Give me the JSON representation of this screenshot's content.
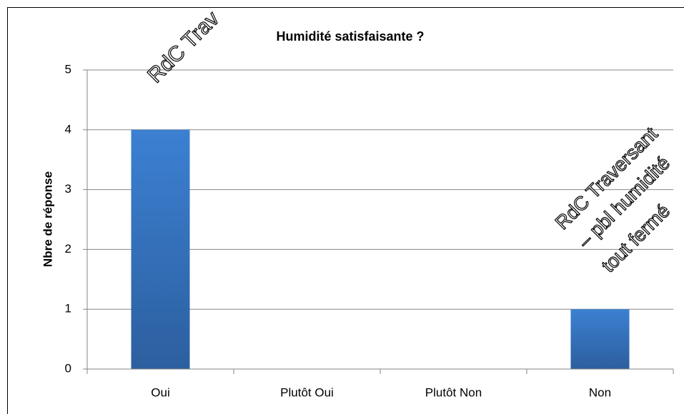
{
  "chart_data": {
    "type": "bar",
    "title": "Humidité satisfaisante ?",
    "y_label": "Nbre de réponse",
    "categories": [
      "Oui",
      "Plutôt Oui",
      "Plutôt Non",
      "Non"
    ],
    "values": [
      4,
      0,
      0,
      1
    ],
    "color": "#3a7ccc",
    "ylim": [
      0,
      5
    ],
    "yticks": [
      0,
      1,
      2,
      3,
      4,
      5
    ],
    "grid": true,
    "annotations": [
      [
        "RdC Trav"
      ],
      [
        "RdC Traversant",
        "– pbl humidité",
        "tout fermé"
      ]
    ]
  }
}
